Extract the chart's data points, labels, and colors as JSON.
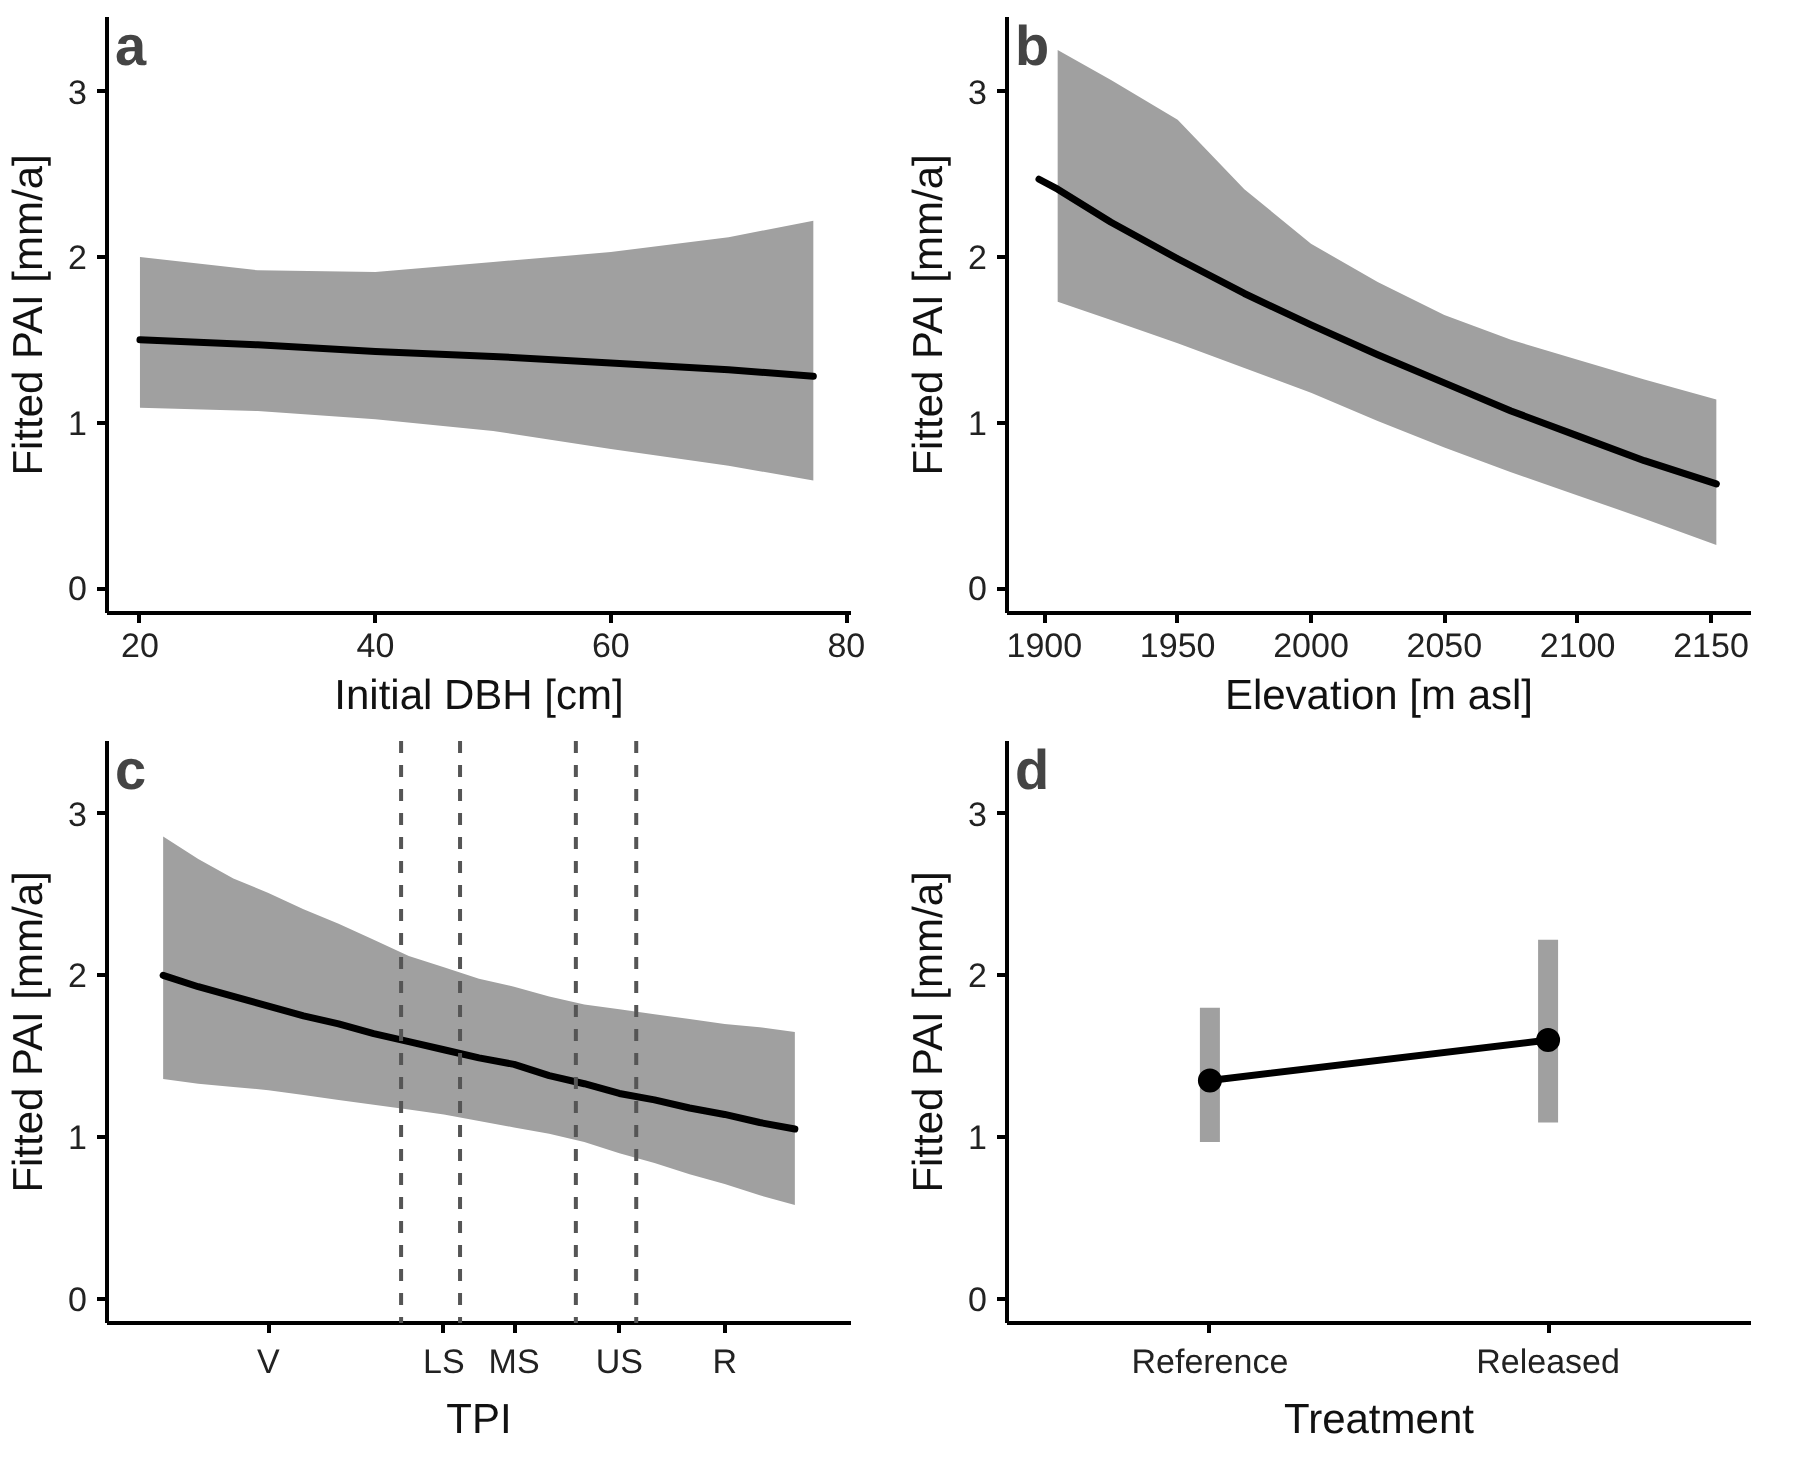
{
  "chart_data": [
    {
      "type": "line",
      "title": "a",
      "xlabel": "Initial DBH [cm]",
      "ylabel": "Fitted PAI [mm/a]",
      "xlim": [
        17.2,
        80.4
      ],
      "ylim": [
        -0.15,
        3.45
      ],
      "xticks": [
        20,
        40,
        60,
        80
      ],
      "yticks": [
        0,
        1,
        2,
        3
      ],
      "grid": false,
      "marker": "none",
      "line_style": "solid",
      "series": [
        {
          "color": "#000000",
          "x": [
            20,
            30,
            40,
            50,
            60,
            70,
            77.2
          ],
          "values": [
            1.5,
            1.47,
            1.43,
            1.4,
            1.36,
            1.32,
            1.28
          ],
          "lower": [
            1.09,
            1.07,
            1.02,
            0.95,
            0.84,
            0.74,
            0.65
          ],
          "upper": [
            2.0,
            1.92,
            1.91,
            1.97,
            2.03,
            2.12,
            2.22
          ]
        }
      ]
    },
    {
      "type": "line",
      "title": "b",
      "xlabel": "Elevation [m asl]",
      "ylabel": "Fitted PAI [mm/a]",
      "xlim": [
        1886,
        2165
      ],
      "ylim": [
        -0.15,
        3.45
      ],
      "xticks": [
        1900,
        1950,
        2000,
        2050,
        2100,
        2150
      ],
      "yticks": [
        0,
        1,
        2,
        3
      ],
      "grid": false,
      "marker": "none",
      "line_style": "solid",
      "series": [
        {
          "color": "#000000",
          "x": [
            1898,
            1905,
            1925,
            1950,
            1975,
            2000,
            2025,
            2050,
            2075,
            2100,
            2125,
            2152
          ],
          "values": [
            2.47,
            2.41,
            2.21,
            1.99,
            1.78,
            1.59,
            1.41,
            1.24,
            1.07,
            0.92,
            0.77,
            0.63
          ],
          "lower": [
            null,
            1.73,
            1.62,
            1.48,
            1.33,
            1.18,
            1.01,
            0.85,
            0.7,
            0.56,
            0.42,
            0.26
          ],
          "upper": [
            null,
            3.25,
            3.07,
            2.83,
            2.41,
            2.08,
            1.85,
            1.65,
            1.5,
            1.38,
            1.26,
            1.14
          ]
        }
      ]
    },
    {
      "type": "line",
      "title": "c",
      "xlabel": "TPI",
      "ylabel": "Fitted PAI [mm/a]",
      "categories": [
        null,
        null,
        null,
        null,
        "V",
        null,
        null,
        null,
        null,
        "LS",
        null,
        "MS",
        null,
        null,
        "US",
        null,
        null,
        "R",
        null,
        null,
        null
      ],
      "ylim": [
        -0.15,
        3.45
      ],
      "yticks": [
        0,
        1,
        2,
        3
      ],
      "grid": false,
      "marker": "none",
      "line_style": "solid",
      "series": [
        {
          "color": "#000000",
          "values": [
            null,
            2.0,
            1.93,
            1.87,
            1.81,
            1.75,
            1.7,
            1.64,
            1.59,
            1.54,
            1.49,
            1.45,
            1.38,
            1.33,
            1.27,
            1.23,
            1.18,
            1.14,
            1.09,
            1.05,
            null
          ],
          "lower": [
            null,
            1.36,
            1.33,
            1.31,
            1.29,
            1.26,
            1.23,
            1.2,
            1.17,
            1.14,
            1.1,
            1.06,
            1.02,
            0.97,
            0.9,
            0.84,
            0.77,
            0.71,
            0.64,
            0.58,
            null
          ],
          "upper": [
            null,
            2.86,
            2.72,
            2.6,
            2.51,
            2.41,
            2.32,
            2.22,
            2.12,
            2.05,
            1.98,
            1.93,
            1.87,
            1.82,
            1.79,
            1.76,
            1.73,
            1.7,
            1.68,
            1.65,
            null
          ]
        }
      ]
    },
    {
      "type": "line",
      "title": "d",
      "xlabel": "Treatment",
      "ylabel": "Fitted PAI [mm/a]",
      "categories": [
        "Reference",
        "Released"
      ],
      "ylim": [
        -0.15,
        3.45
      ],
      "yticks": [
        0,
        1,
        2,
        3
      ],
      "grid": false,
      "marker": "circle",
      "line_style": "solid",
      "series": [
        {
          "color": "#000000",
          "values": [
            1.35,
            1.6
          ],
          "errors": [
            [
              0.97,
              1.8
            ],
            [
              1.09,
              2.22
            ]
          ]
        }
      ]
    }
  ]
}
